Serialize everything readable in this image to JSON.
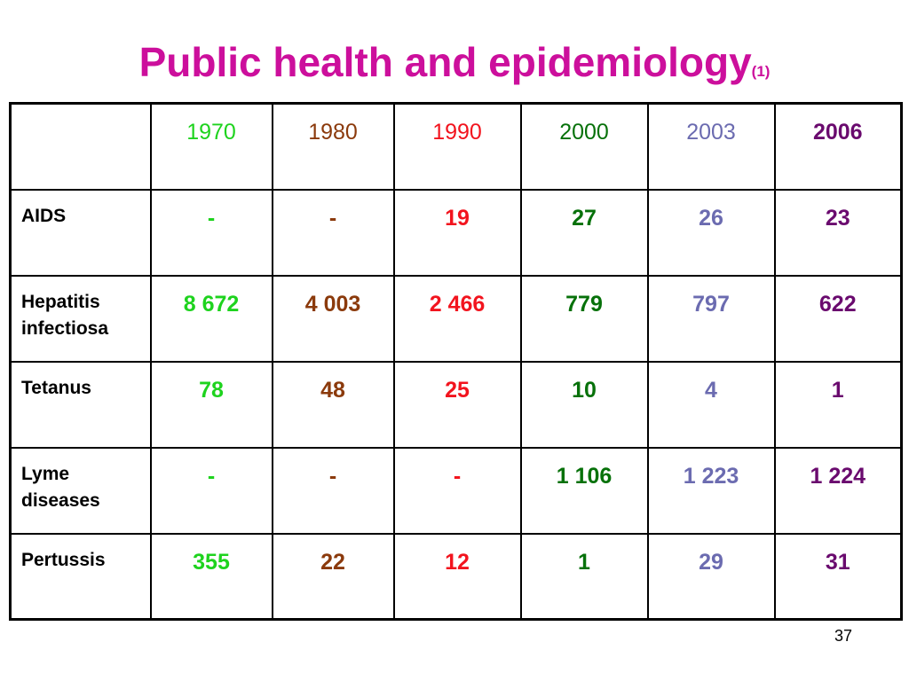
{
  "slide": {
    "title": "Public health and epidemiology",
    "title_note": "(1)",
    "page_number": "37"
  },
  "table": {
    "corner": "",
    "years": [
      "1970",
      "1980",
      "1990",
      "2000",
      "2003",
      "2006"
    ],
    "year_colors": [
      "#1ed31e",
      "#8b3a0c",
      "#f2141e",
      "#07710a",
      "#6b6bb0",
      "#6a0a6e"
    ],
    "rows": [
      {
        "label_lines": [
          "AIDS"
        ],
        "values": [
          "-",
          "-",
          "19",
          "27",
          "26",
          "23"
        ]
      },
      {
        "label_lines": [
          "Hepatitis",
          "infectiosa"
        ],
        "values": [
          "8 672",
          "4 003",
          "2 466",
          "779",
          "797",
          "622"
        ]
      },
      {
        "label_lines": [
          "Tetanus"
        ],
        "values": [
          "78",
          "48",
          "25",
          "10",
          "4",
          "1"
        ]
      },
      {
        "label_lines": [
          "Lyme",
          "diseases"
        ],
        "values": [
          "-",
          "-",
          "-",
          "1 106",
          "1 223",
          "1 224"
        ]
      },
      {
        "label_lines": [
          "Pertussis"
        ],
        "values": [
          "355",
          "22",
          "12",
          "1",
          "29",
          "31"
        ]
      }
    ],
    "title_color": "#cc0f9c"
  }
}
